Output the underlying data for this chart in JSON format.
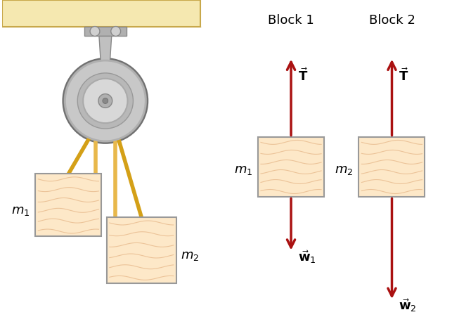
{
  "bg_color": "#ffffff",
  "ceiling_color": "#f5e8b0",
  "ceiling_border": "#c8a84b",
  "block_fill": "#f5cfa0",
  "block_fill_light": "#fde8c8",
  "block_border": "#999999",
  "rope_color": "#d4a017",
  "rope_color2": "#e8b84b",
  "pulley_rim": "#b0b0b0",
  "pulley_face": "#c8c8c8",
  "pulley_inner": "#d8d8d8",
  "pulley_hub": "#a0a0a0",
  "bracket_color": "#b0b0b0",
  "bracket_dark": "#888888",
  "arrow_color": "#aa1111",
  "text_color": "#000000",
  "block1_title": "Block 1",
  "block2_title": "Block 2",
  "wave_color": "#e0aa78",
  "wave_color2": "#dda060"
}
